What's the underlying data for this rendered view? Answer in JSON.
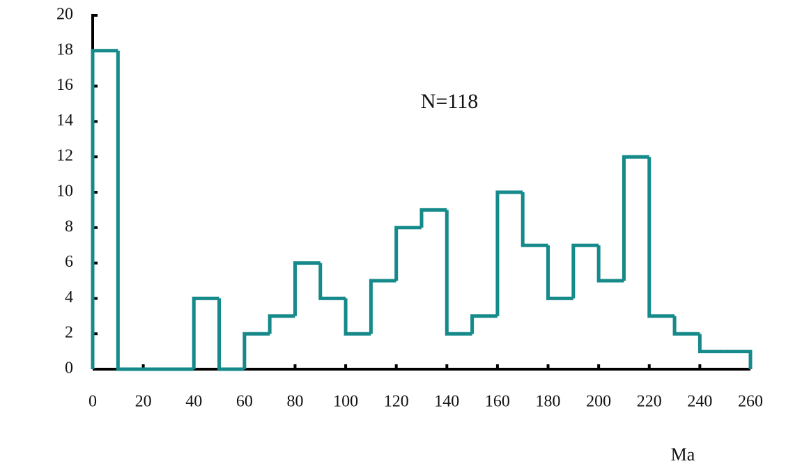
{
  "chart_data": {
    "type": "histogram",
    "annotation": "N=118",
    "x_label": "Ma",
    "bins": [
      0,
      10,
      20,
      30,
      40,
      50,
      60,
      70,
      80,
      90,
      100,
      110,
      120,
      130,
      140,
      150,
      160,
      170,
      180,
      190,
      200,
      210,
      220,
      230,
      240,
      250,
      260
    ],
    "values": [
      18,
      0,
      0,
      0,
      4,
      0,
      2,
      3,
      6,
      4,
      2,
      5,
      8,
      9,
      2,
      3,
      10,
      7,
      4,
      7,
      5,
      12,
      3,
      2,
      1,
      1
    ],
    "color": "#168a8a",
    "xlim": [
      0,
      260
    ],
    "ylim": [
      0,
      20
    ],
    "xticks": [
      0,
      20,
      40,
      60,
      80,
      100,
      120,
      140,
      160,
      180,
      200,
      220,
      240,
      260
    ],
    "yticks": [
      0,
      2,
      4,
      6,
      8,
      10,
      12,
      14,
      16,
      18,
      20
    ]
  }
}
